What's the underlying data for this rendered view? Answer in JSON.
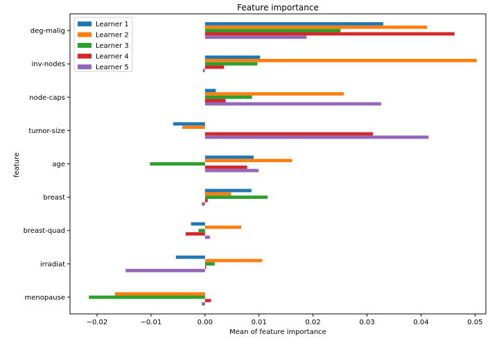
{
  "chart_data": {
    "type": "bar",
    "orientation": "horizontal",
    "title": "Feature importance",
    "xlabel": "Mean of feature importance",
    "ylabel": "feature",
    "xlim": [
      -0.025,
      0.052
    ],
    "xticks": [
      -0.02,
      -0.01,
      0.0,
      0.01,
      0.02,
      0.03,
      0.04,
      0.05
    ],
    "xtick_labels": [
      "−0.02",
      "−0.01",
      "0.00",
      "0.01",
      "0.02",
      "0.03",
      "0.04",
      "0.05"
    ],
    "grid": false,
    "legend_position": "top-left",
    "categories": [
      "deg-malig",
      "inv-nodes",
      "node-caps",
      "tumor-size",
      "age",
      "breast",
      "breast-quad",
      "irradiat",
      "menopause"
    ],
    "series": [
      {
        "name": "Learner 1",
        "color": "#1f77b4",
        "values": [
          0.033,
          0.0102,
          0.002,
          -0.0059,
          0.009,
          0.0086,
          -0.0026,
          -0.0054,
          0.0
        ]
      },
      {
        "name": "Learner 2",
        "color": "#ff7f0e",
        "values": [
          0.0411,
          0.0503,
          0.0257,
          -0.0042,
          0.0161,
          0.0048,
          0.0067,
          0.0106,
          -0.0167
        ]
      },
      {
        "name": "Learner 3",
        "color": "#2ca02c",
        "values": [
          0.0251,
          0.0097,
          0.0087,
          0.0,
          -0.0102,
          0.0116,
          -0.0012,
          0.0018,
          -0.0215
        ]
      },
      {
        "name": "Learner 4",
        "color": "#d62728",
        "values": [
          0.0462,
          0.0035,
          0.0038,
          0.0311,
          0.0078,
          0.0005,
          -0.0036,
          0.0002,
          0.0011
        ]
      },
      {
        "name": "Learner 5",
        "color": "#9467bd",
        "values": [
          0.0188,
          -0.0004,
          0.0326,
          0.0414,
          0.0099,
          -0.0006,
          0.0009,
          -0.0147,
          -0.0006
        ]
      }
    ]
  }
}
